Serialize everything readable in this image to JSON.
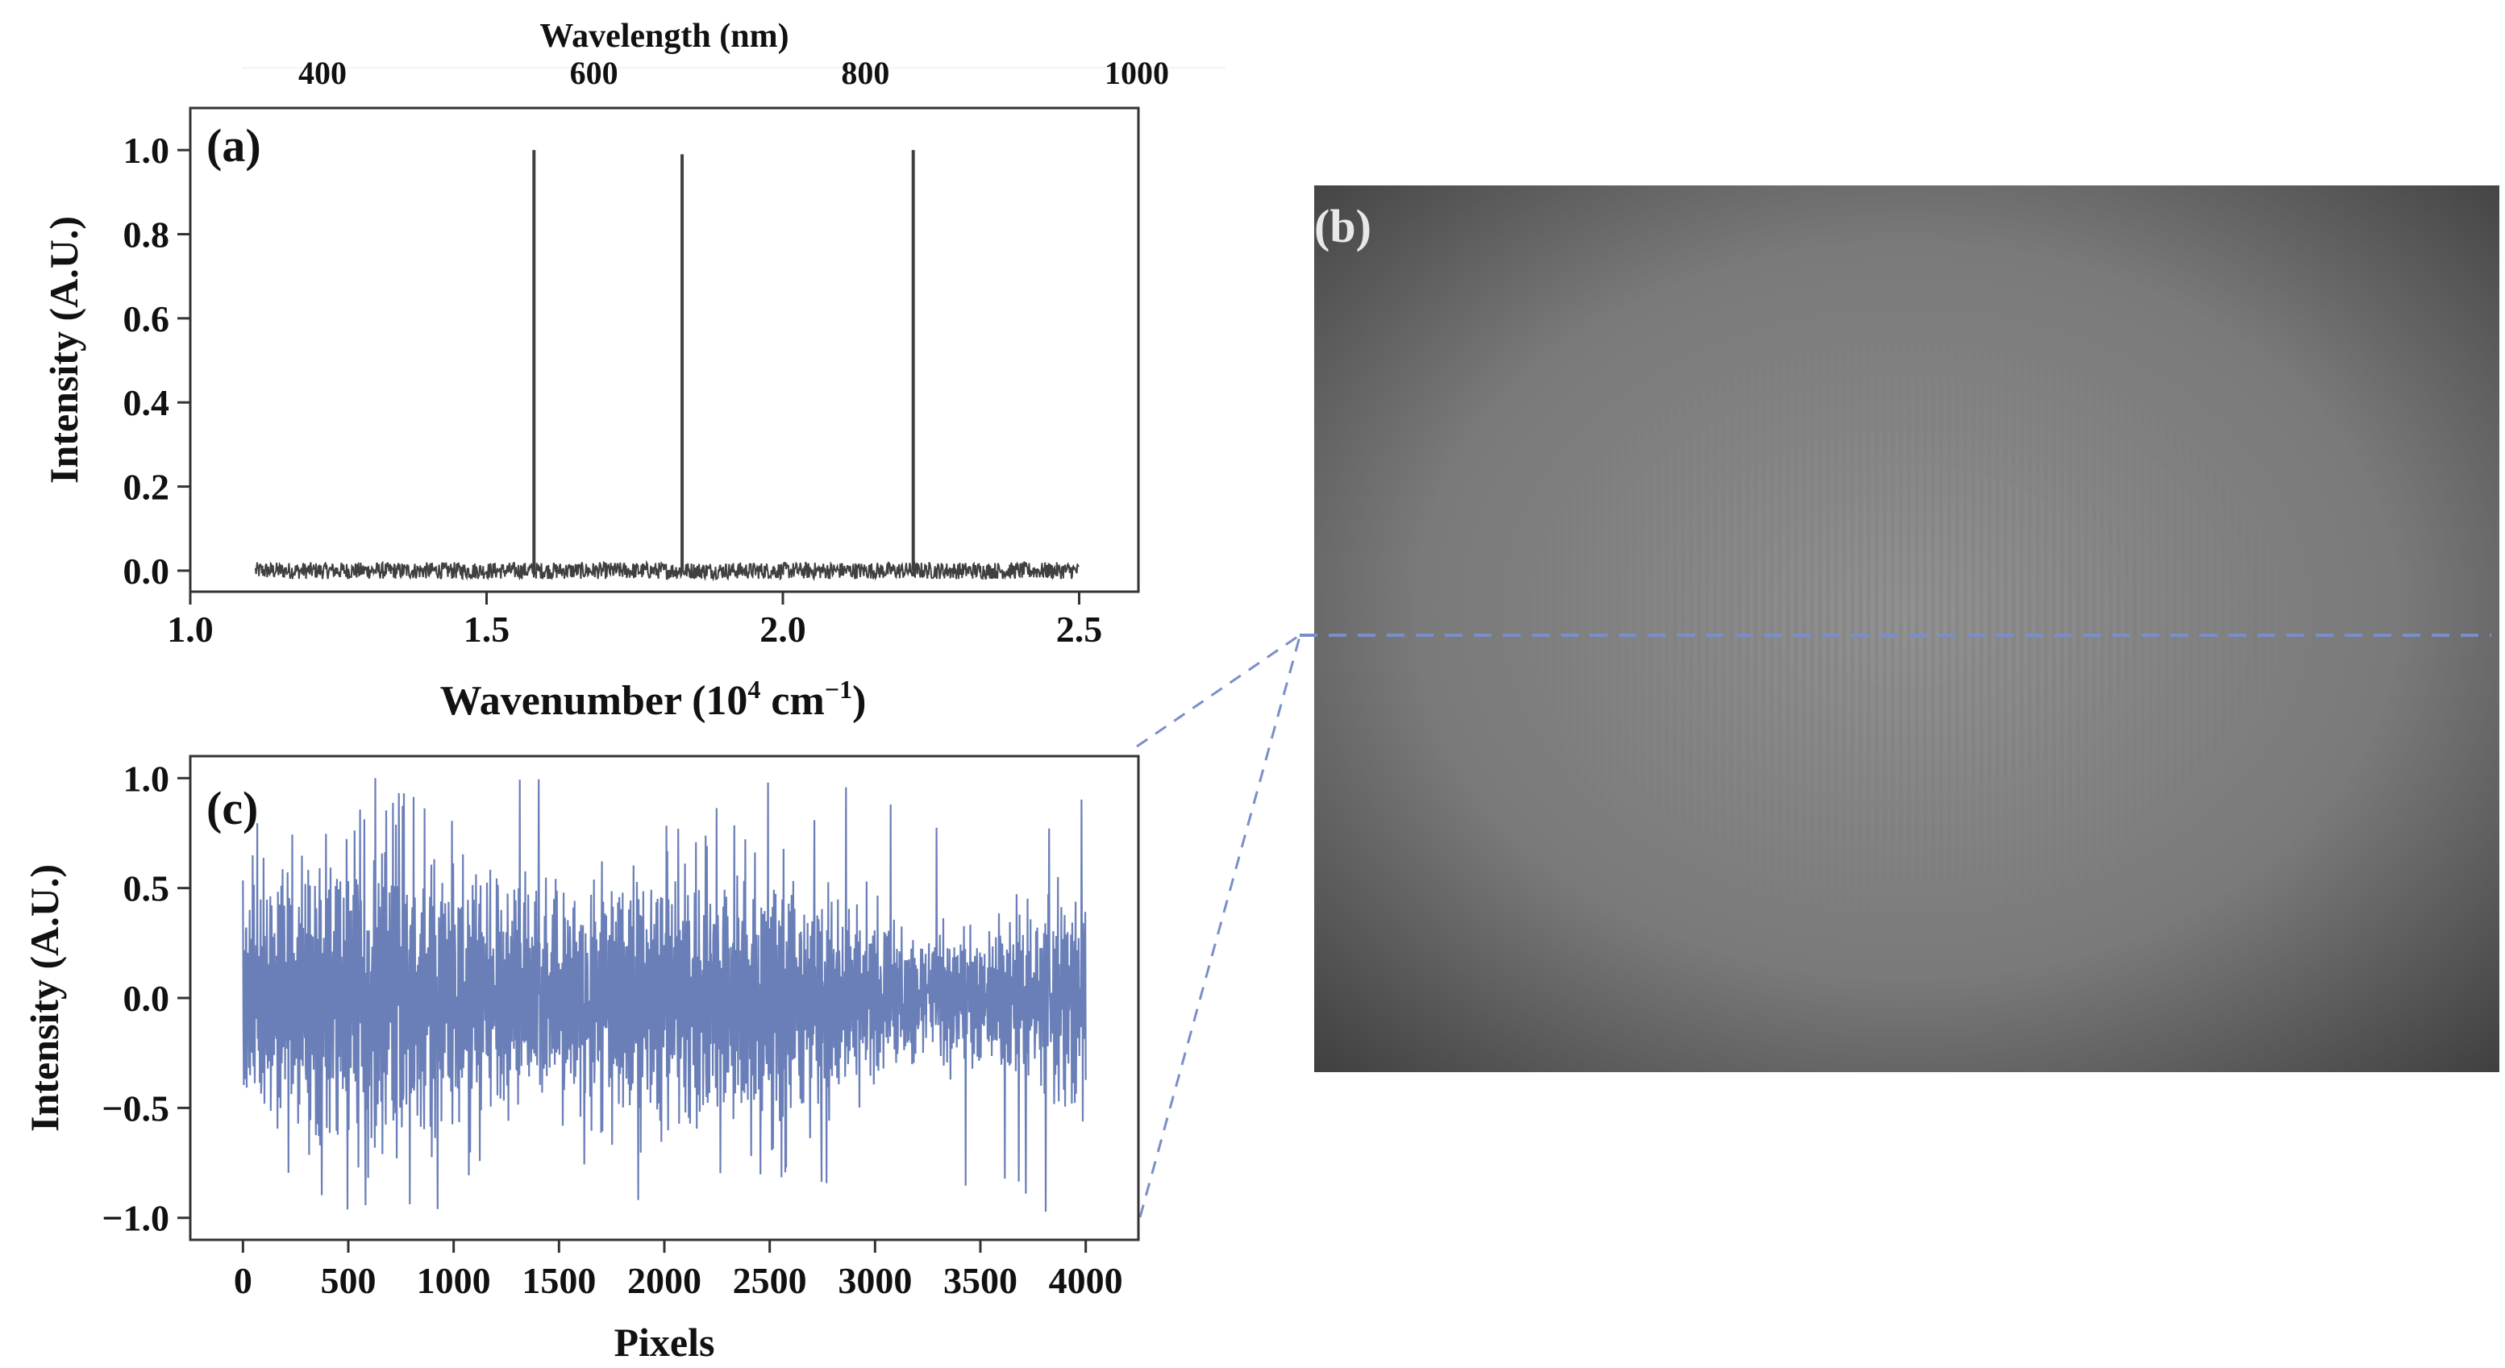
{
  "figure": {
    "panel_b_label": "(b)"
  },
  "chart_data": [
    {
      "id": "a",
      "type": "line",
      "panel_label": "(a)",
      "xlabel": "Wavenumber (10⁴ cm⁻¹)",
      "xlabel_parts": {
        "base": "Wavenumber (10",
        "exp1": "4",
        "mid": " cm",
        "exp2": "−1",
        "end": ")"
      },
      "ylabel": "Intensity (A.U.)",
      "top_xlabel": "Wavelength (nm)",
      "xlim": [
        1.0,
        2.6
      ],
      "ylim": [
        -0.05,
        1.1
      ],
      "x_ticks": [
        1.0,
        1.5,
        2.0,
        2.5
      ],
      "x_tick_labels": [
        "1.0",
        "1.5",
        "2.0",
        "2.5"
      ],
      "y_ticks": [
        0.0,
        0.2,
        0.4,
        0.6,
        0.8,
        1.0
      ],
      "y_tick_labels": [
        "0.0",
        "0.2",
        "0.4",
        "0.6",
        "0.8",
        "1.0"
      ],
      "top_ticks_nm": [
        400,
        600,
        800,
        1000
      ],
      "top_tick_labels": [
        "400",
        "600",
        "800",
        "1000"
      ],
      "data_range_x": [
        1.11,
        2.5
      ],
      "noise_amplitude": 0.02,
      "peaks": [
        {
          "x": 1.58,
          "y": 1.0
        },
        {
          "x": 1.83,
          "y": 0.99
        },
        {
          "x": 2.22,
          "y": 1.0
        }
      ],
      "line_color": "#404040"
    },
    {
      "id": "c",
      "type": "line",
      "panel_label": "(c)",
      "xlabel": "Pixels",
      "ylabel": "Intensity (A.U.)",
      "xlim": [
        -250,
        4250
      ],
      "ylim": [
        -1.1,
        1.1
      ],
      "x_ticks": [
        0,
        500,
        1000,
        1500,
        2000,
        2500,
        3000,
        3500,
        4000
      ],
      "x_tick_labels": [
        "0",
        "500",
        "1000",
        "1500",
        "2000",
        "2500",
        "3000",
        "3500",
        "4000"
      ],
      "y_ticks": [
        -1.0,
        -0.5,
        0.0,
        0.5,
        1.0
      ],
      "y_tick_labels": [
        "−1.0",
        "−0.5",
        "0.0",
        "0.5",
        "1.0"
      ],
      "data_range_x": [
        0,
        4000
      ],
      "signal_max": 1.0,
      "signal_min": -1.0,
      "line_color": "#6a7fb8"
    }
  ],
  "colors": {
    "dashed_line": "#7a8fc8",
    "image_dark": "#3a3a3a",
    "image_light": "#888888"
  }
}
